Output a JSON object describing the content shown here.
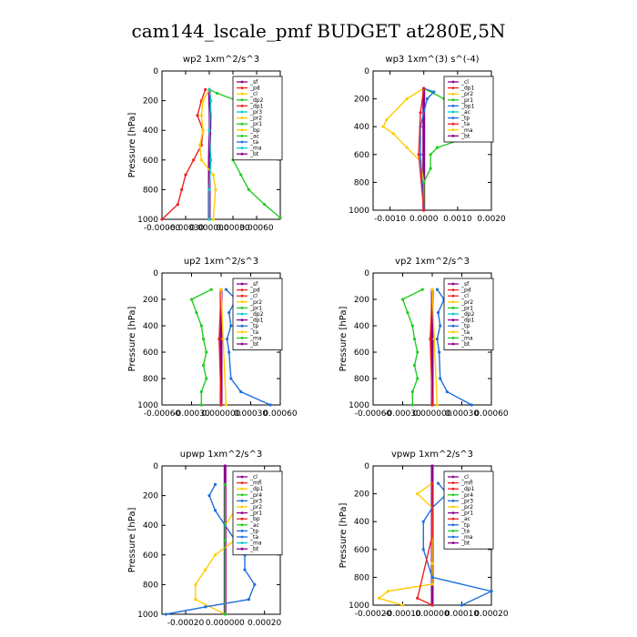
{
  "page": {
    "title": "cam144_lscale_pmf  BUDGET at280E,5N"
  },
  "chart_data": [
    {
      "type": "line",
      "title": "wp2   1xm^2/s^3",
      "ylabel": "Pressure [hPa]",
      "ylim": [
        1000,
        0
      ],
      "y_ticks": [
        "0",
        "200",
        "400",
        "600",
        "800",
        "1000"
      ],
      "xlim": [
        -0.0006,
        0.0009
      ],
      "x_ticks": [
        -0.0006,
        -0.0003,
        0.0,
        0.0003,
        0.0006
      ],
      "x_tick_labels": [
        "-0.00060",
        "-0.00030",
        "0.000000",
        "0.00030",
        "0.00060"
      ],
      "legend": [
        "_sf",
        "_pd",
        "_cl",
        "_dp2",
        "_dp1",
        "_pr3",
        "_pr2",
        "_pr1",
        "_bp",
        "_ac",
        "_ta",
        "_ma",
        "_bt"
      ],
      "series": [
        {
          "name": "_bt",
          "color": "#8b008b",
          "points": [
            [
              0,
              125
            ],
            [
              1e-05,
              300
            ],
            [
              0,
              600
            ],
            [
              0,
              1000
            ]
          ]
        },
        {
          "name": "_dp1",
          "color": "#ee2222",
          "points": [
            [
              -5e-05,
              125
            ],
            [
              -0.0001,
              200
            ],
            [
              -0.00015,
              300
            ],
            [
              -8e-05,
              400
            ],
            [
              -0.0001,
              500
            ],
            [
              -0.0002,
              600
            ],
            [
              -0.0003,
              700
            ],
            [
              -0.00035,
              800
            ],
            [
              -0.0004,
              900
            ],
            [
              -0.0006,
              1000
            ]
          ]
        },
        {
          "name": "_pr1",
          "color": "#22cc22",
          "points": [
            [
              0,
              125
            ],
            [
              0.0001,
              150
            ],
            [
              0.00035,
              200
            ],
            [
              0.0005,
              300
            ],
            [
              0.00058,
              400
            ],
            [
              0.0005,
              500
            ],
            [
              0.0003,
              600
            ],
            [
              0.0004,
              700
            ],
            [
              0.0005,
              800
            ],
            [
              0.0007,
              900
            ],
            [
              0.0009,
              990
            ]
          ]
        },
        {
          "name": "_pr2",
          "color": "#ffcc00",
          "points": [
            [
              0,
              125
            ],
            [
              -8e-05,
              200
            ],
            [
              -0.0001,
              300
            ],
            [
              -8e-05,
              400
            ],
            [
              -0.00012,
              500
            ],
            [
              -0.0001,
              600
            ],
            [
              5e-05,
              700
            ],
            [
              8e-05,
              800
            ],
            [
              5e-05,
              1000
            ]
          ]
        },
        {
          "name": "_ma",
          "color": "#00ced1",
          "points": [
            [
              0,
              125
            ],
            [
              2e-05,
              200
            ],
            [
              0,
              400
            ],
            [
              2e-05,
              600
            ],
            [
              0,
              800
            ],
            [
              0,
              1000
            ]
          ]
        }
      ]
    },
    {
      "type": "line",
      "title": "wp3   1xm^(3) s^(-4)",
      "ylabel": "",
      "ylim": [
        1000,
        0
      ],
      "y_ticks": [
        "0",
        "200",
        "400",
        "600",
        "800",
        "1000"
      ],
      "xlim": [
        -0.0015,
        0.002
      ],
      "x_ticks": [
        -0.001,
        0.0,
        0.001,
        0.002
      ],
      "x_tick_labels": [
        "-0.0010",
        "0.0000",
        "0.0010",
        "0.0020"
      ],
      "legend": [
        "_cl",
        "_dp1",
        "_pr2",
        "_pr1",
        "_bp1",
        "_ac",
        "_tp",
        "_ta",
        "_ma",
        "_bt"
      ],
      "series": [
        {
          "name": "_bt",
          "color": "#8b008b",
          "points": [
            [
              0,
              125
            ],
            [
              0,
              400
            ],
            [
              0,
              600
            ],
            [
              0,
              1000
            ]
          ]
        },
        {
          "name": "_pr2",
          "color": "#ffcc00",
          "points": [
            [
              0,
              125
            ],
            [
              -0.0005,
              200
            ],
            [
              -0.0011,
              350
            ],
            [
              -0.0012,
              400
            ],
            [
              -0.0009,
              450
            ],
            [
              -0.0005,
              550
            ],
            [
              -0.0001,
              650
            ],
            [
              0,
              800
            ],
            [
              0,
              1000
            ]
          ]
        },
        {
          "name": "_pr1",
          "color": "#22cc22",
          "points": [
            [
              0,
              125
            ],
            [
              0.0006,
              200
            ],
            [
              0.0016,
              300
            ],
            [
              0.0019,
              400
            ],
            [
              0.0016,
              450
            ],
            [
              0.0004,
              550
            ],
            [
              0.0002,
              600
            ],
            [
              0.0002,
              700
            ],
            [
              0,
              800
            ],
            [
              0,
              1000
            ]
          ]
        },
        {
          "name": "_tp",
          "color": "#1e6fdd",
          "points": [
            [
              0,
              125
            ],
            [
              0.0003,
              150
            ],
            [
              0.0001,
              200
            ],
            [
              -0.0001,
              400
            ],
            [
              -0.0001,
              600
            ],
            [
              0,
              1000
            ]
          ]
        },
        {
          "name": "_dp1",
          "color": "#ee2222",
          "points": [
            [
              0,
              125
            ],
            [
              -0.0001,
              300
            ],
            [
              -0.00015,
              600
            ],
            [
              0,
              1000
            ]
          ]
        }
      ]
    },
    {
      "type": "line",
      "title": "up2   1xm^2/s^3",
      "ylabel": "Pressure [hPa]",
      "ylim": [
        1000,
        0
      ],
      "y_ticks": [
        "0",
        "200",
        "400",
        "600",
        "800",
        "1000"
      ],
      "xlim": [
        -0.0006,
        0.0006
      ],
      "x_ticks": [
        -0.0006,
        -0.0003,
        0.0,
        0.0003,
        0.0006
      ],
      "x_tick_labels": [
        "-0.00060",
        "-0.00030",
        "0.000000",
        "0.00030",
        "0.00060"
      ],
      "legend": [
        "_sf",
        "_pd",
        "_cl",
        "_pr2",
        "_pr1",
        "_dp2",
        "_dp1",
        "_tp",
        "_ta",
        "_ma",
        "_bt"
      ],
      "series": [
        {
          "name": "_bt",
          "color": "#8b008b",
          "points": [
            [
              0,
              125
            ],
            [
              0,
              500
            ],
            [
              0,
              1000
            ]
          ]
        },
        {
          "name": "_cl",
          "color": "#ee2222",
          "points": [
            [
              0,
              125
            ],
            [
              -2e-05,
              500
            ],
            [
              0,
              1000
            ]
          ]
        },
        {
          "name": "_pr1",
          "color": "#22cc22",
          "points": [
            [
              -0.0001,
              125
            ],
            [
              -0.0003,
              200
            ],
            [
              -0.00025,
              300
            ],
            [
              -0.0002,
              400
            ],
            [
              -0.00018,
              500
            ],
            [
              -0.00015,
              600
            ],
            [
              -0.00018,
              700
            ],
            [
              -0.00015,
              800
            ],
            [
              -0.0002,
              900
            ],
            [
              -0.0002,
              1000
            ]
          ]
        },
        {
          "name": "_tp",
          "color": "#1e6fdd",
          "points": [
            [
              5e-05,
              125
            ],
            [
              0.00015,
              200
            ],
            [
              8e-05,
              300
            ],
            [
              0.0001,
              400
            ],
            [
              6e-05,
              500
            ],
            [
              8e-05,
              600
            ],
            [
              0.0001,
              800
            ],
            [
              0.0002,
              900
            ],
            [
              0.0005,
              1000
            ]
          ]
        },
        {
          "name": "_pr2",
          "color": "#ffcc00",
          "points": [
            [
              0,
              125
            ],
            [
              2e-05,
              500
            ],
            [
              5e-05,
              1000
            ]
          ]
        }
      ]
    },
    {
      "type": "line",
      "title": "vp2   1xm^2/s^3",
      "ylabel": "Pressure [hPa]",
      "ylim": [
        1000,
        0
      ],
      "y_ticks": [
        "0",
        "200",
        "400",
        "600",
        "800",
        "1000"
      ],
      "xlim": [
        -0.0006,
        0.0006
      ],
      "x_ticks": [
        -0.0006,
        -0.0003,
        0.0,
        0.0003,
        0.0006
      ],
      "x_tick_labels": [
        "-0.00060",
        "-0.00030",
        "0.000000",
        "0.00030",
        "0.00060"
      ],
      "legend": [
        "_sf",
        "_pd",
        "_cl",
        "_pr2",
        "_pr1",
        "_dp2",
        "_dp1",
        "_tp",
        "_ta",
        "_ma",
        "_bt"
      ],
      "series": [
        {
          "name": "_bt",
          "color": "#8b008b",
          "points": [
            [
              0,
              125
            ],
            [
              0,
              500
            ],
            [
              0,
              1000
            ]
          ]
        },
        {
          "name": "_cl",
          "color": "#ee2222",
          "points": [
            [
              0,
              125
            ],
            [
              -2e-05,
              500
            ],
            [
              0,
              1000
            ]
          ]
        },
        {
          "name": "_pr1",
          "color": "#22cc22",
          "points": [
            [
              -0.0001,
              125
            ],
            [
              -0.0003,
              200
            ],
            [
              -0.00025,
              300
            ],
            [
              -0.0002,
              400
            ],
            [
              -0.00018,
              500
            ],
            [
              -0.00015,
              600
            ],
            [
              -0.00018,
              700
            ],
            [
              -0.00015,
              800
            ],
            [
              -0.0002,
              900
            ],
            [
              -0.0002,
              1000
            ]
          ]
        },
        {
          "name": "_tp",
          "color": "#1e6fdd",
          "points": [
            [
              5e-05,
              125
            ],
            [
              0.00012,
              200
            ],
            [
              6e-05,
              300
            ],
            [
              8e-05,
              400
            ],
            [
              5e-05,
              500
            ],
            [
              7e-05,
              600
            ],
            [
              8e-05,
              800
            ],
            [
              0.00015,
              900
            ],
            [
              0.0004,
              1000
            ]
          ]
        },
        {
          "name": "_pr2",
          "color": "#ffcc00",
          "points": [
            [
              0,
              125
            ],
            [
              2e-05,
              500
            ],
            [
              5e-05,
              1000
            ]
          ]
        }
      ]
    },
    {
      "type": "line",
      "title": "upwp   1xm^2/s^3",
      "ylabel": "Pressure [hPa]",
      "ylim": [
        1000,
        0
      ],
      "y_ticks": [
        "0",
        "200",
        "400",
        "600",
        "800",
        "1000"
      ],
      "xlim": [
        -0.00032,
        0.00028
      ],
      "x_ticks": [
        -0.0002,
        0.0,
        0.0002
      ],
      "x_tick_labels": [
        "-0.00020",
        "0.000000",
        "0.00020"
      ],
      "legend": [
        "_cl",
        "_mfl",
        "_dp1",
        "_pr4",
        "_pr3",
        "_pr2",
        "_pr1",
        "_bp",
        "_ac",
        "_tp",
        "_ta",
        "_ma",
        "_bt"
      ],
      "series": [
        {
          "name": "_bt",
          "color": "#8b008b",
          "points": [
            [
              0,
              0
            ],
            [
              0,
              500
            ],
            [
              0,
              1000
            ]
          ]
        },
        {
          "name": "_pr2",
          "color": "#ffcc00",
          "points": [
            [
              5e-05,
              125
            ],
            [
              0.0001,
              200
            ],
            [
              5e-05,
              300
            ],
            [
              0,
              400
            ],
            [
              5e-05,
              500
            ],
            [
              -5e-05,
              600
            ],
            [
              -0.0001,
              700
            ],
            [
              -0.00015,
              800
            ],
            [
              -0.00015,
              900
            ],
            [
              0,
              1000
            ]
          ]
        },
        {
          "name": "_tp",
          "color": "#1e6fdd",
          "points": [
            [
              -5e-05,
              125
            ],
            [
              -8e-05,
              200
            ],
            [
              -5e-05,
              300
            ],
            [
              0,
              400
            ],
            [
              5e-05,
              500
            ],
            [
              0.0001,
              600
            ],
            [
              0.0001,
              700
            ],
            [
              0.00015,
              800
            ],
            [
              0.00012,
              900
            ],
            [
              -0.0001,
              950
            ],
            [
              -0.0003,
              1000
            ]
          ]
        },
        {
          "name": "_ac",
          "color": "#22cc22",
          "points": [
            [
              0,
              125
            ],
            [
              0,
              500
            ],
            [
              0,
              1000
            ]
          ]
        }
      ]
    },
    {
      "type": "line",
      "title": "vpwp   1xm^2/s^3",
      "ylabel": "Pressure [hPa]",
      "ylim": [
        1000,
        0
      ],
      "y_ticks": [
        "0",
        "200",
        "400",
        "600",
        "800",
        "1000"
      ],
      "xlim": [
        -0.0002,
        0.0002
      ],
      "x_ticks": [
        -0.0002,
        -0.0001,
        0.0,
        0.0001,
        0.0002
      ],
      "x_tick_labels": [
        "-0.00020",
        "-0.00010",
        "0.00000",
        "0.00010",
        "0.00020"
      ],
      "legend": [
        "_cl",
        "_mfl",
        "_dp1",
        "_pr4",
        "_pr3",
        "_pr2",
        "_pr1",
        "_ac",
        "_tp",
        "_ta",
        "_ma",
        "_bt"
      ],
      "series": [
        {
          "name": "_bt",
          "color": "#8b008b",
          "points": [
            [
              0,
              0
            ],
            [
              0,
              500
            ],
            [
              0,
              1000
            ]
          ]
        },
        {
          "name": "_pr2",
          "color": "#ffcc00",
          "points": [
            [
              0,
              125
            ],
            [
              -5e-05,
              200
            ],
            [
              0,
              300
            ],
            [
              0,
              500
            ],
            [
              0,
              700
            ],
            [
              0,
              850
            ],
            [
              -0.00015,
              900
            ],
            [
              -0.00018,
              950
            ],
            [
              -0.0001,
              1000
            ]
          ]
        },
        {
          "name": "_tp",
          "color": "#1e6fdd",
          "points": [
            [
              2e-05,
              125
            ],
            [
              5e-05,
              200
            ],
            [
              0,
              300
            ],
            [
              -3e-05,
              400
            ],
            [
              -3e-05,
              600
            ],
            [
              0,
              800
            ],
            [
              0.0002,
              900
            ],
            [
              0.0001,
              1000
            ]
          ]
        },
        {
          "name": "_dp1",
          "color": "#ee2222",
          "points": [
            [
              0,
              125
            ],
            [
              0,
              500
            ],
            [
              -5e-05,
              950
            ],
            [
              0,
              1000
            ]
          ]
        }
      ]
    }
  ]
}
